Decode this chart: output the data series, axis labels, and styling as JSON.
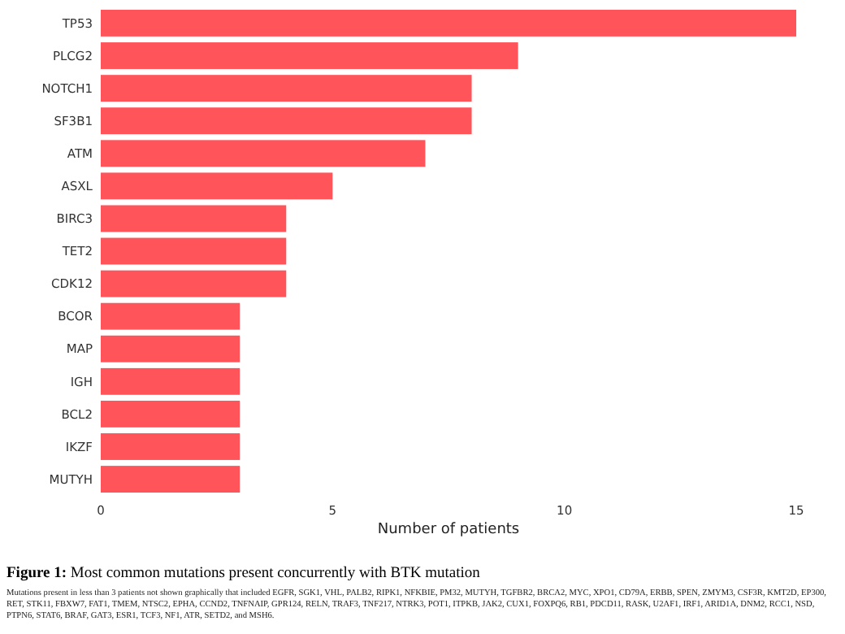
{
  "chart_data": {
    "type": "bar",
    "orientation": "horizontal",
    "title": "Figure 1: Most common mutations present concurrently with BTK mutation",
    "xlabel": "Number of patients",
    "categories": [
      "TP53",
      "PLCG2",
      "NOTCH1",
      "SF3B1",
      "ATM",
      "ASXL",
      "BIRC3",
      "TET2",
      "CDK12",
      "BCOR",
      "MAP",
      "IGH",
      "BCL2",
      "IKZF",
      "MUTYH"
    ],
    "values": [
      15,
      9,
      8,
      8,
      7,
      5,
      4,
      4,
      4,
      3,
      3,
      3,
      3,
      3,
      3
    ],
    "color": "#ff5459",
    "xlim": [
      0,
      15
    ],
    "xticks": [
      0,
      5,
      10,
      15
    ],
    "annotations": [
      "Mutations present in less than 3 patients not shown graphically that included EGFR, SGK1, VHL, PALB2, RIPK1, NFKBIE, PM32, MUTYH, TGFBR2, BRCA2, MYC, XPO1, CD79A, ERBB, SPEN, ZMYM3, CSF3R, KMT2D, EP300, RET, STK11, FBXW7, FAT1, TMEM, NTSC2, EPHA, CCND2, TNFNAIP, GPR124, RELN, TRAF3, TNF217, NTRK3, POT1, ITPKB, JAK2, CUX1, FOXPQ6, RB1, PDCD11, RASK, U2AF1, IRF1, ARID1A, DNM2, RCC1, NSD, PTPN6, STAT6, BRAF, GAT3, ESR1, TCF3, NF1, ATR, SETD2, and MSH6."
    ]
  }
}
